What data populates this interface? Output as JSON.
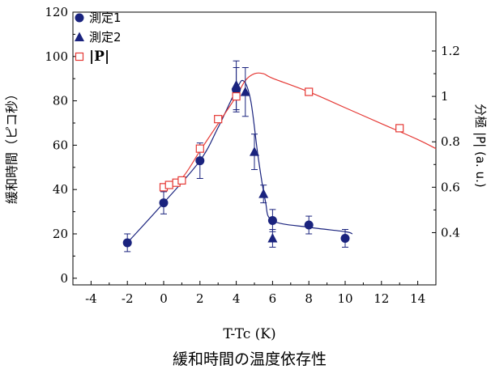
{
  "caption": "緩和時間の温度依存性",
  "chart_data": {
    "type": "scatter",
    "title": "",
    "xlabel": "T-Tc (K)",
    "ylabel": "緩和時間（ピコ秒）",
    "y2label": "分極 |P| (a. u.)",
    "xlim": [
      -5,
      15
    ],
    "ylim": [
      -3,
      120
    ],
    "y2lim": [
      0.17,
      1.371
    ],
    "x_ticks": [
      -4,
      -2,
      0,
      2,
      4,
      6,
      8,
      10,
      12,
      14
    ],
    "y_ticks": [
      0,
      20,
      40,
      60,
      80,
      100,
      120
    ],
    "y2_ticks": [
      0.4,
      0.6,
      0.8,
      1.0,
      1.2
    ],
    "legend": {
      "position": "top-left"
    },
    "series": [
      {
        "name": "測定1",
        "axis": "left",
        "marker": "circle",
        "color": "#1a237e",
        "x": [
          -2,
          0,
          2,
          4,
          6,
          8,
          10
        ],
        "y": [
          16,
          34,
          53,
          85,
          26,
          24,
          18
        ],
        "err": [
          4,
          5,
          8,
          10,
          5,
          4,
          4
        ]
      },
      {
        "name": "測定2",
        "axis": "left",
        "marker": "triangle",
        "color": "#1a237e",
        "x": [
          4,
          4.5,
          5,
          5.5,
          6
        ],
        "y": [
          87,
          84,
          57,
          38,
          18
        ],
        "err": [
          11,
          11,
          8,
          4,
          4
        ]
      },
      {
        "name": "|P|",
        "axis": "right",
        "marker": "square-open",
        "color": "#e53935",
        "x": [
          0,
          0.3,
          0.7,
          1,
          2,
          3,
          4,
          8,
          13
        ],
        "y": [
          0.6,
          0.61,
          0.62,
          0.63,
          0.77,
          0.9,
          1.0,
          1.02,
          0.86
        ]
      }
    ],
    "fits": [
      {
        "name": "測定1-fit",
        "axis": "left",
        "color": "#1a237e",
        "x": [
          -2,
          0,
          2,
          3,
          4,
          4.4,
          4.8,
          5.2,
          5.6,
          6,
          8,
          10,
          10.4
        ],
        "y": [
          16,
          34,
          53,
          68,
          85,
          89,
          80,
          55,
          35,
          26,
          23,
          21,
          20
        ]
      },
      {
        "name": "|P|-fit",
        "axis": "right",
        "color": "#e53935",
        "x": [
          0,
          1,
          2,
          3,
          4,
          4.5,
          5,
          5.5,
          6,
          8,
          10,
          12,
          14,
          15
        ],
        "y": [
          0.6,
          0.64,
          0.76,
          0.88,
          1.0,
          1.07,
          1.1,
          1.1,
          1.08,
          1.02,
          0.95,
          0.88,
          0.81,
          0.77
        ]
      }
    ]
  }
}
